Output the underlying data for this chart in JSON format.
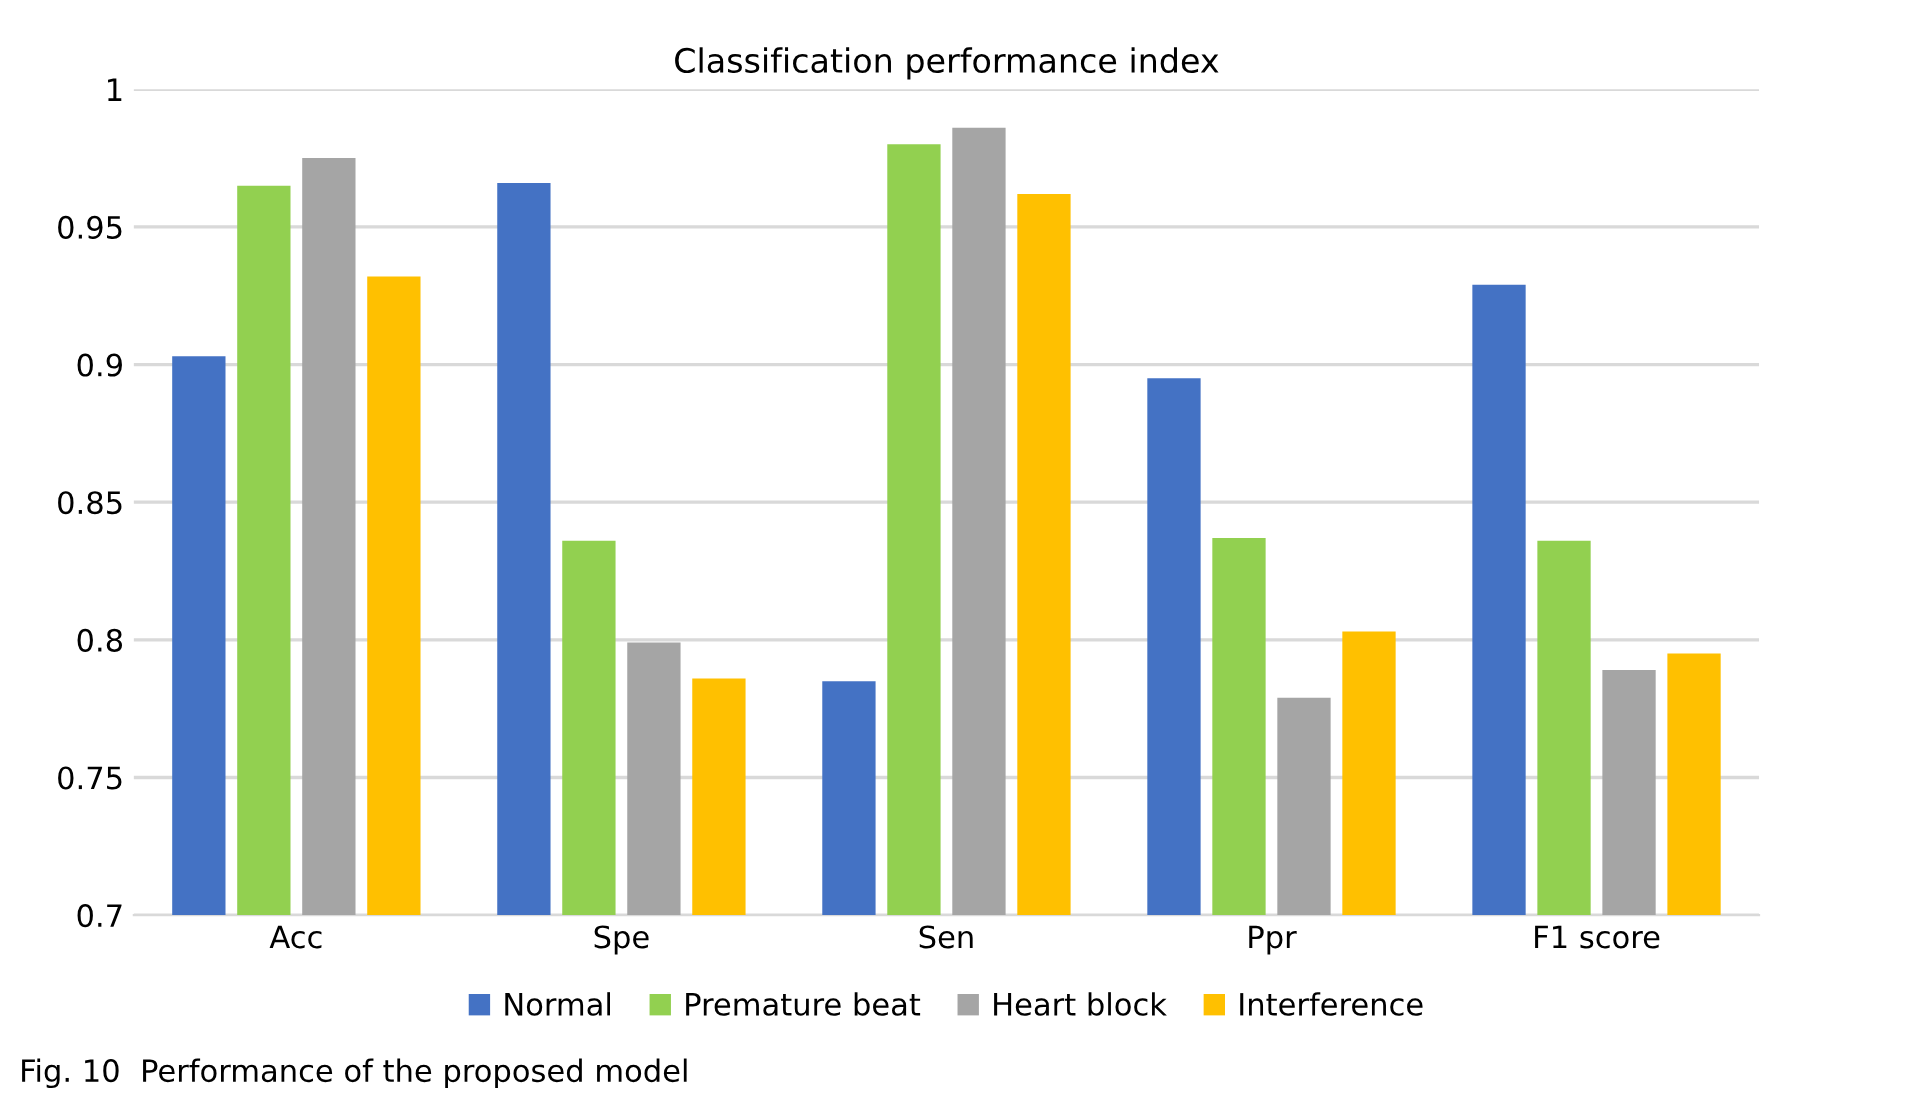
{
  "chart_data": {
    "type": "bar",
    "title": "Classification performance index",
    "categories": [
      "Acc",
      "Spe",
      "Sen",
      "Ppr",
      "F1 score"
    ],
    "series": [
      {
        "name": "Normal",
        "color": "#4472c4",
        "values": [
          0.903,
          0.966,
          0.785,
          0.895,
          0.929
        ]
      },
      {
        "name": "Premature beat",
        "color": "#92d050",
        "values": [
          0.965,
          0.836,
          0.98,
          0.837,
          0.836
        ]
      },
      {
        "name": "Heart block",
        "color": "#a5a5a5",
        "values": [
          0.975,
          0.799,
          0.986,
          0.779,
          0.789
        ]
      },
      {
        "name": "Interference",
        "color": "#ffc000",
        "values": [
          0.932,
          0.786,
          0.962,
          0.803,
          0.795
        ]
      }
    ],
    "ylim": [
      0.7,
      1
    ],
    "yticks": [
      0.7,
      0.75,
      0.8,
      0.85,
      0.9,
      0.95,
      1
    ],
    "grid": "y",
    "legend": "bottom",
    "annotations": [
      "Fig. 10  Performance of the proposed model"
    ]
  }
}
